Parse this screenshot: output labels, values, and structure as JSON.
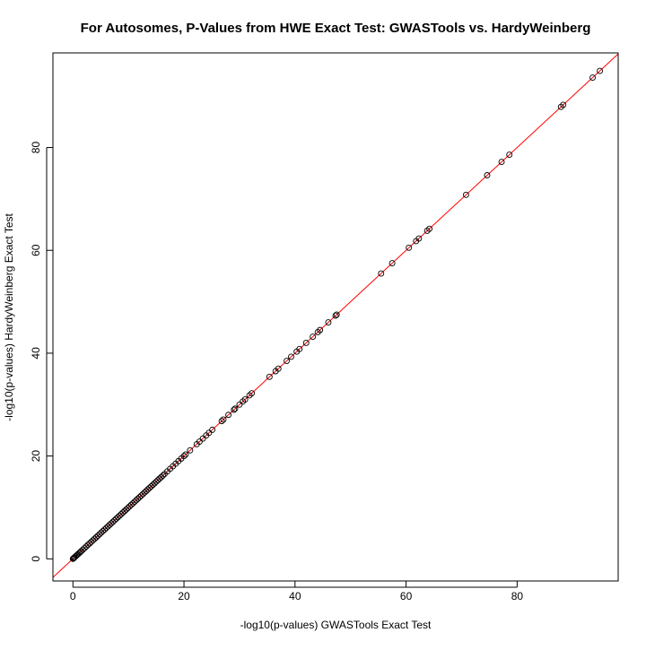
{
  "chart_data": {
    "type": "scatter",
    "title": "For Autosomes, P-Values from HWE Exact Test: GWASTools vs. HardyWeinberg",
    "xlabel": "-log10(p-values) GWASTools Exact Test",
    "ylabel": "-log10(p-values) HardyWeinberg Exact Test",
    "xlim": [
      -3.6,
      98.2
    ],
    "ylim": [
      -4.3,
      98.4
    ],
    "x_ticks": [
      0,
      20,
      40,
      60,
      80
    ],
    "y_ticks": [
      0,
      20,
      40,
      60,
      80
    ],
    "grid": false,
    "reference_line": {
      "type": "identity",
      "slope": 1,
      "intercept": 0,
      "color": "#ff0000"
    },
    "point_style": {
      "shape": "open-circle",
      "stroke": "#000000",
      "fill": "none"
    },
    "series": [
      {
        "points": [
          [
            0,
            0
          ],
          [
            0.1,
            0.1
          ],
          [
            0.2,
            0.2
          ],
          [
            0.3,
            0.3
          ],
          [
            0.5,
            0.5
          ],
          [
            0.7,
            0.7
          ],
          [
            0.9,
            0.9
          ],
          [
            1.1,
            1.1
          ],
          [
            1.3,
            1.3
          ],
          [
            1.5,
            1.5
          ],
          [
            1.8,
            1.8
          ],
          [
            2.1,
            2.1
          ],
          [
            2.4,
            2.4
          ],
          [
            2.7,
            2.7
          ],
          [
            3.0,
            3.0
          ],
          [
            3.3,
            3.3
          ],
          [
            3.6,
            3.6
          ],
          [
            3.9,
            3.9
          ],
          [
            4.2,
            4.2
          ],
          [
            4.5,
            4.5
          ],
          [
            4.8,
            4.8
          ],
          [
            5.1,
            5.1
          ],
          [
            5.4,
            5.4
          ],
          [
            5.7,
            5.7
          ],
          [
            6.0,
            6.0
          ],
          [
            6.3,
            6.3
          ],
          [
            6.6,
            6.6
          ],
          [
            6.9,
            6.9
          ],
          [
            7.2,
            7.2
          ],
          [
            7.5,
            7.5
          ],
          [
            7.8,
            7.8
          ],
          [
            8.1,
            8.1
          ],
          [
            8.4,
            8.4
          ],
          [
            8.7,
            8.7
          ],
          [
            9.0,
            9.0
          ],
          [
            9.3,
            9.3
          ],
          [
            9.6,
            9.6
          ],
          [
            9.9,
            9.9
          ],
          [
            10.2,
            10.2
          ],
          [
            10.5,
            10.5
          ],
          [
            10.8,
            10.8
          ],
          [
            11.1,
            11.1
          ],
          [
            11.4,
            11.4
          ],
          [
            11.7,
            11.7
          ],
          [
            12.0,
            12.0
          ],
          [
            12.3,
            12.3
          ],
          [
            12.6,
            12.6
          ],
          [
            12.9,
            12.9
          ],
          [
            13.2,
            13.2
          ],
          [
            13.5,
            13.5
          ],
          [
            13.8,
            13.8
          ],
          [
            14.1,
            14.1
          ],
          [
            14.4,
            14.4
          ],
          [
            14.7,
            14.7
          ],
          [
            15.0,
            15.0
          ],
          [
            15.3,
            15.3
          ],
          [
            15.6,
            15.6
          ],
          [
            15.9,
            15.9
          ],
          [
            16.2,
            16.2
          ],
          [
            16.5,
            16.5
          ],
          [
            17.0,
            17.0
          ],
          [
            17.5,
            17.5
          ],
          [
            18.0,
            18.0
          ],
          [
            18.5,
            18.5
          ],
          [
            19.0,
            19.0
          ],
          [
            19.5,
            19.5
          ],
          [
            20.0,
            20.0
          ],
          [
            20.3,
            20.3
          ],
          [
            21.1,
            21.1
          ],
          [
            22.3,
            22.3
          ],
          [
            22.8,
            22.8
          ],
          [
            23.4,
            23.4
          ],
          [
            24.0,
            24.0
          ],
          [
            24.5,
            24.5
          ],
          [
            25.1,
            25.1
          ],
          [
            26.8,
            26.8
          ],
          [
            27.1,
            27.1
          ],
          [
            28.0,
            28.0
          ],
          [
            29.0,
            29.0
          ],
          [
            29.2,
            29.2
          ],
          [
            30.0,
            30.0
          ],
          [
            30.6,
            30.6
          ],
          [
            31.0,
            31.0
          ],
          [
            31.8,
            31.8
          ],
          [
            32.2,
            32.2
          ],
          [
            35.4,
            35.4
          ],
          [
            36.5,
            36.5
          ],
          [
            37.0,
            37.0
          ],
          [
            38.5,
            38.5
          ],
          [
            39.3,
            39.3
          ],
          [
            40.3,
            40.3
          ],
          [
            40.8,
            40.8
          ],
          [
            42.0,
            42.0
          ],
          [
            43.2,
            43.2
          ],
          [
            44.1,
            44.1
          ],
          [
            44.5,
            44.5
          ],
          [
            46.0,
            46.0
          ],
          [
            47.3,
            47.3
          ],
          [
            47.5,
            47.5
          ],
          [
            55.5,
            55.5
          ],
          [
            57.5,
            57.5
          ],
          [
            60.5,
            60.5
          ],
          [
            61.8,
            61.8
          ],
          [
            62.3,
            62.3
          ],
          [
            63.8,
            63.8
          ],
          [
            64.2,
            64.2
          ],
          [
            70.8,
            70.8
          ],
          [
            74.6,
            74.6
          ],
          [
            77.2,
            77.2
          ],
          [
            78.6,
            78.6
          ],
          [
            87.9,
            87.9
          ],
          [
            88.3,
            88.3
          ],
          [
            93.6,
            93.6
          ],
          [
            94.9,
            94.9
          ]
        ]
      }
    ]
  }
}
